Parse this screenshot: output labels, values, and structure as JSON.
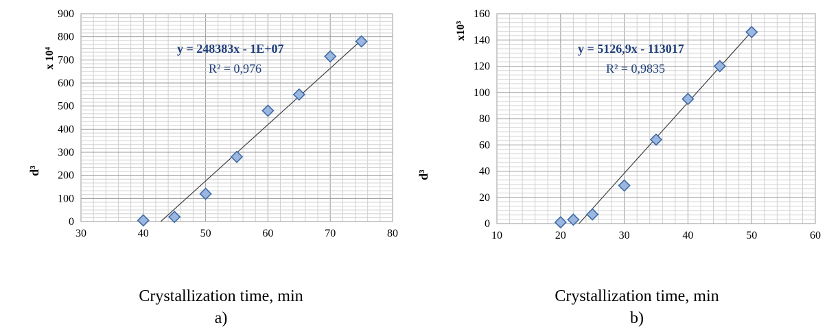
{
  "chart_data": [
    {
      "type": "scatter",
      "panel_label": "a)",
      "xlabel": "Crystallization time, min",
      "ylabel": "d³",
      "y_unit_label": "x 10⁴",
      "xlim": [
        30,
        80
      ],
      "ylim": [
        0,
        900
      ],
      "x_ticks": [
        30,
        40,
        50,
        60,
        70,
        80
      ],
      "y_ticks": [
        0,
        100,
        200,
        300,
        400,
        500,
        600,
        700,
        800,
        900
      ],
      "grid": true,
      "points": {
        "x": [
          40,
          45,
          50,
          55,
          60,
          65,
          70,
          75
        ],
        "y": [
          5,
          20,
          120,
          280,
          480,
          550,
          715,
          780
        ]
      },
      "trendline": {
        "x": [
          42.8,
          75.3
        ],
        "y": [
          0,
          793
        ],
        "equation": "y = 248383x - 1E+07",
        "r_squared": "R² = 0,976"
      },
      "colors": {
        "marker_fill": "#9bb7df",
        "marker_stroke": "#3f6aa6",
        "line": "#404040",
        "annotation": "#1f3f7a"
      }
    },
    {
      "type": "scatter",
      "panel_label": "b)",
      "xlabel": "Crystallization time, min",
      "ylabel": "d³",
      "y_unit_label": "x10³",
      "xlim": [
        10,
        60
      ],
      "ylim": [
        0,
        160
      ],
      "x_ticks": [
        10,
        20,
        30,
        40,
        50,
        60
      ],
      "y_ticks": [
        0,
        20,
        40,
        60,
        80,
        100,
        120,
        140,
        160
      ],
      "grid": true,
      "points": {
        "x": [
          20,
          22,
          25,
          30,
          35,
          40,
          45,
          50
        ],
        "y": [
          1,
          3,
          7,
          29,
          64,
          95,
          120,
          146
        ]
      },
      "trendline": {
        "x": [
          22.9,
          50.3
        ],
        "y": [
          0,
          148
        ],
        "equation": "y = 5126,9x - 113017",
        "r_squared": "R² = 0,9835"
      },
      "colors": {
        "marker_fill": "#9bb7df",
        "marker_stroke": "#3f6aa6",
        "line": "#404040",
        "annotation": "#1f3f7a"
      }
    }
  ]
}
